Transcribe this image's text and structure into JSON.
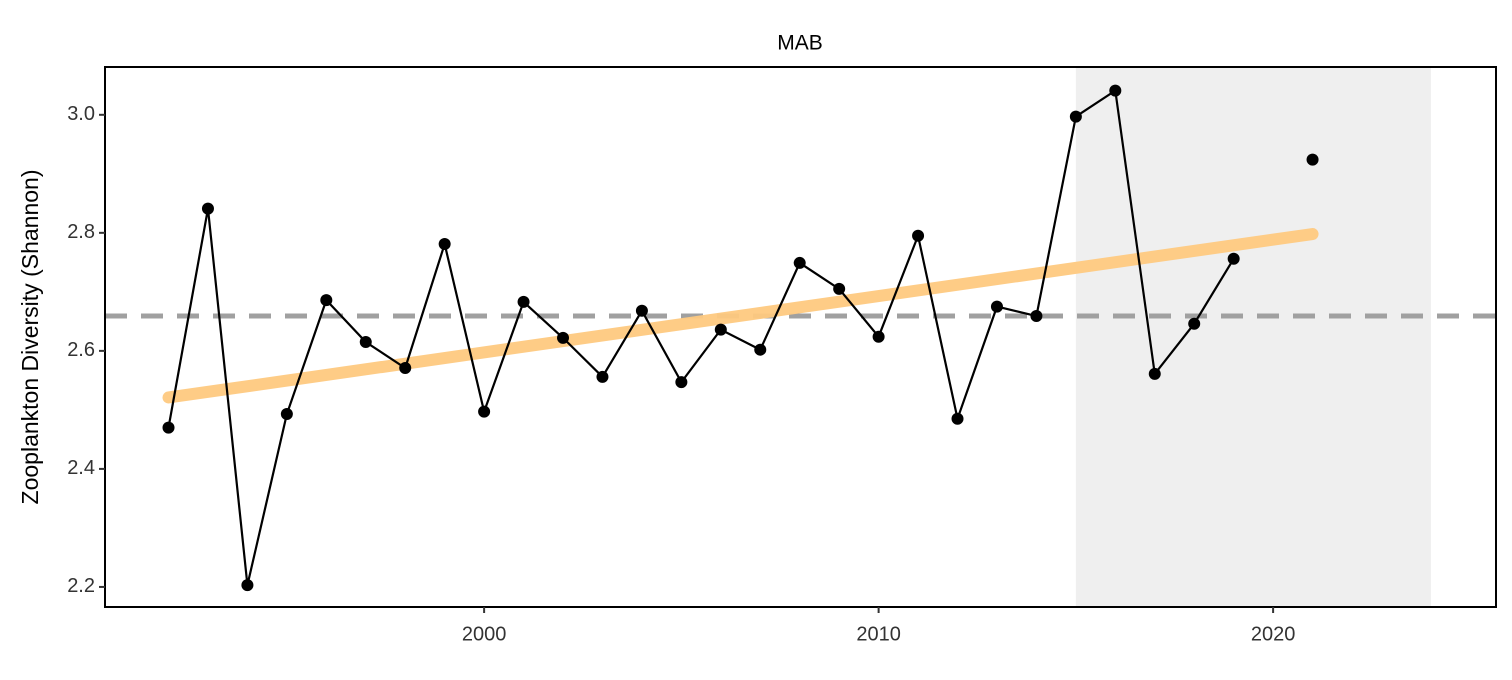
{
  "chart_data": {
    "type": "line",
    "title": "MAB",
    "y_label": "Zooplankton Diversity (Shannon)",
    "x": [
      1992,
      1993,
      1994,
      1995,
      1996,
      1997,
      1998,
      1999,
      2000,
      2001,
      2002,
      2003,
      2004,
      2005,
      2006,
      2007,
      2008,
      2009,
      2010,
      2011,
      2012,
      2013,
      2014,
      2015,
      2016,
      2017,
      2018,
      2019,
      2020,
      2021
    ],
    "values": [
      2.47,
      2.841,
      2.203,
      2.493,
      2.686,
      2.615,
      2.571,
      2.781,
      2.497,
      2.683,
      2.622,
      2.556,
      2.668,
      2.547,
      2.636,
      2.602,
      2.749,
      2.705,
      2.624,
      2.795,
      2.485,
      2.675,
      2.659,
      2.997,
      3.041,
      2.561,
      2.646,
      2.756,
      null,
      2.924
    ],
    "color": "#000000",
    "trend": {
      "x": [
        1992,
        2021
      ],
      "values": [
        2.521,
        2.798
      ],
      "color": "#fec980"
    },
    "mean": {
      "value": 2.659,
      "color": "#a0a0a0"
    },
    "shade": {
      "xlim": [
        2015,
        2024
      ],
      "color": "#efefef"
    },
    "xlim": [
      1990.39,
      2025.65
    ],
    "xticks": [
      2000,
      2010,
      2020
    ],
    "ylim": [
      2.166,
      3.081
    ],
    "yticks": [
      {
        "value": 2.2,
        "label": "2.2"
      },
      {
        "value": 2.4,
        "label": "2.4"
      },
      {
        "value": 2.6,
        "label": "2.6"
      },
      {
        "value": 2.8,
        "label": "2.8"
      },
      {
        "value": 3.0,
        "label": "3.0"
      }
    ]
  }
}
